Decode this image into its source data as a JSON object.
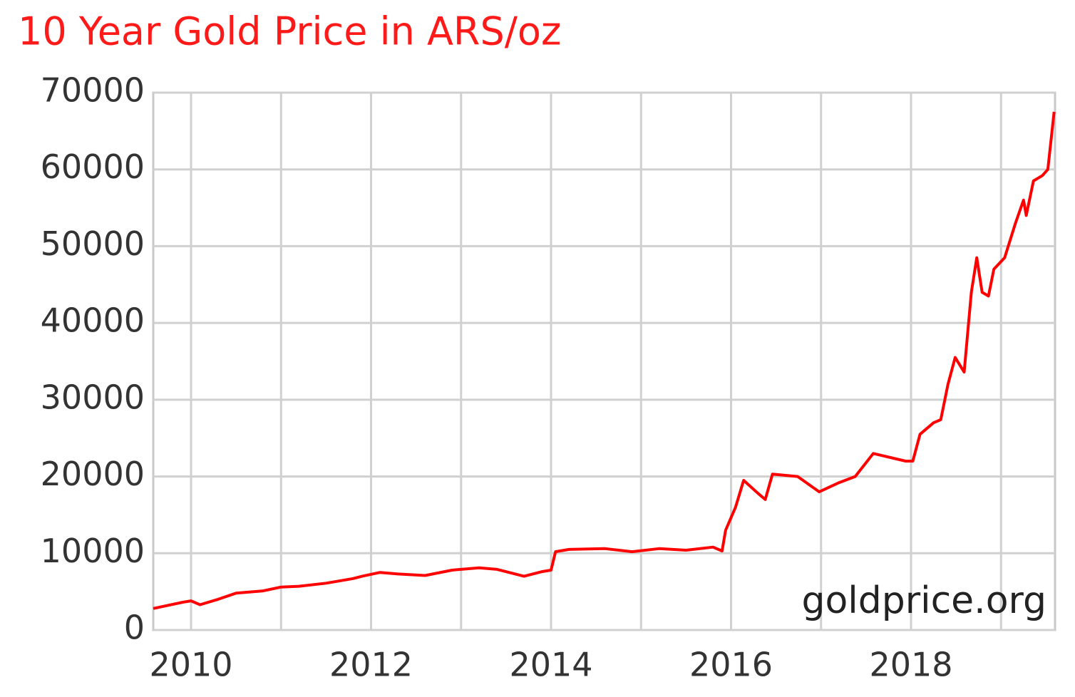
{
  "chart_data": {
    "type": "line",
    "title": "10 Year Gold Price in ARS/oz",
    "watermark": "goldprice.org",
    "x": [
      2009.58,
      2009.9,
      2010.0,
      2010.1,
      2010.3,
      2010.5,
      2010.8,
      2011.0,
      2011.2,
      2011.5,
      2011.8,
      2011.9,
      2012.1,
      2012.3,
      2012.6,
      2012.9,
      2013.2,
      2013.4,
      2013.7,
      2013.9,
      2014.0,
      2014.05,
      2014.2,
      2014.6,
      2014.9,
      2015.2,
      2015.5,
      2015.8,
      2015.9,
      2015.94,
      2016.05,
      2016.14,
      2016.3,
      2016.38,
      2016.46,
      2016.74,
      2016.98,
      2017.2,
      2017.38,
      2017.58,
      2017.94,
      2018.02,
      2018.1,
      2018.25,
      2018.33,
      2018.41,
      2018.49,
      2018.59,
      2018.67,
      2018.73,
      2018.79,
      2018.86,
      2018.92,
      2019.04,
      2019.16,
      2019.25,
      2019.28,
      2019.36,
      2019.46,
      2019.52,
      2019.59
    ],
    "series": [
      {
        "name": "Gold Price",
        "color": "#ff0000",
        "values": [
          2800,
          3600,
          3800,
          3300,
          4000,
          4800,
          5100,
          5600,
          5700,
          6100,
          6700,
          7000,
          7500,
          7300,
          7100,
          7800,
          8100,
          7900,
          7000,
          7600,
          7800,
          10200,
          10500,
          10600,
          10200,
          10600,
          10400,
          10800,
          10300,
          13000,
          16000,
          19500,
          17800,
          17000,
          20300,
          20000,
          18000,
          19200,
          20000,
          23000,
          22000,
          22000,
          25500,
          27000,
          27400,
          32000,
          35500,
          33600,
          44000,
          48500,
          44000,
          43500,
          47000,
          48500,
          53000,
          56000,
          54000,
          58500,
          59200,
          60000,
          67500
        ]
      }
    ],
    "xlim": [
      2009.58,
      2019.6
    ],
    "xticks": [
      2010,
      2012,
      2014,
      2016,
      2018
    ],
    "x_minor_grid": [
      2011,
      2013,
      2015,
      2017,
      2019
    ],
    "ylim": [
      0,
      70000
    ],
    "yticks": [
      0,
      10000,
      20000,
      30000,
      40000,
      50000,
      60000,
      70000
    ],
    "grid": true
  }
}
